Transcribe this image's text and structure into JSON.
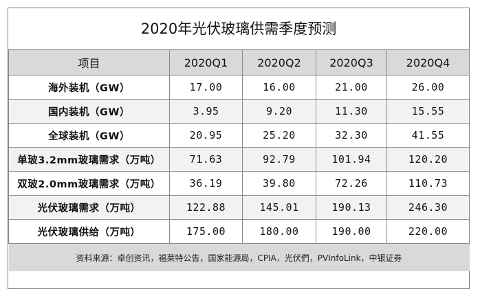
{
  "title": "2020年光伏玻璃供需季度预测",
  "header": {
    "item": "项目",
    "quarters": [
      "2020Q1",
      "2020Q2",
      "2020Q3",
      "2020Q4"
    ]
  },
  "rows": [
    {
      "label": "海外装机（GW）",
      "values": [
        "17.00",
        "16.00",
        "21.00",
        "26.00"
      ]
    },
    {
      "label": "国内装机（GW）",
      "values": [
        "3.95",
        "9.20",
        "11.30",
        "15.55"
      ]
    },
    {
      "label": "全球装机（GW）",
      "values": [
        "20.95",
        "25.20",
        "32.30",
        "41.55"
      ]
    },
    {
      "label": "单玻3.2mm玻璃需求（万吨）",
      "values": [
        "71.63",
        "92.79",
        "101.94",
        "120.20"
      ]
    },
    {
      "label": "双玻2.0mm玻璃需求（万吨）",
      "values": [
        "36.19",
        "39.80",
        "72.26",
        "110.73"
      ]
    },
    {
      "label": "光伏玻璃需求（万吨）",
      "values": [
        "122.88",
        "145.01",
        "190.13",
        "246.30"
      ]
    },
    {
      "label": "光伏玻璃供给（万吨）",
      "values": [
        "175.00",
        "180.00",
        "190.00",
        "220.00"
      ]
    }
  ],
  "source": "资料来源：卓创资讯，福莱特公告，国家能源局，CPIA，光伏們，PVInfoLink，中银证券"
}
